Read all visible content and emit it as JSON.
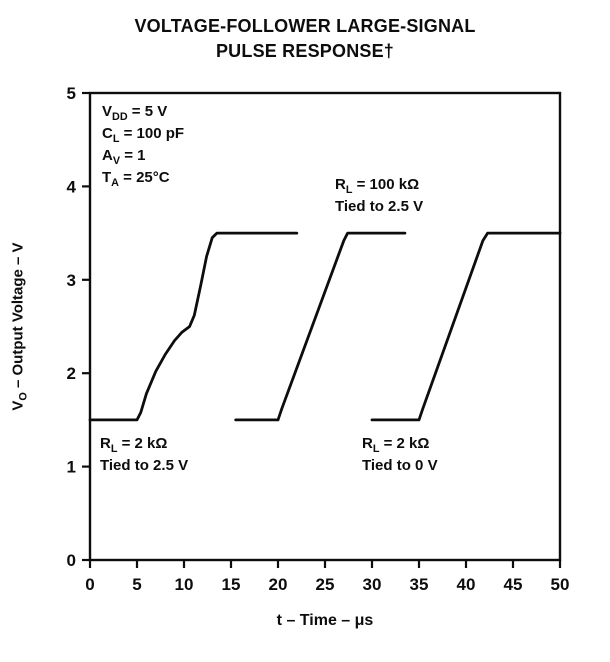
{
  "title": {
    "line1": "VOLTAGE-FOLLOWER LARGE-SIGNAL",
    "line2": "PULSE RESPONSE†"
  },
  "axes": {
    "x": {
      "label": "t – Time – μs"
    },
    "y": {
      "pre": "V",
      "sub": "O",
      "post": " – Output Voltage – V"
    }
  },
  "annotations": {
    "conditions": {
      "lines": [
        {
          "pre": "V",
          "sub": "DD",
          "post": " = 5 V"
        },
        {
          "pre": "C",
          "sub": "L",
          "post": " = 100 pF"
        },
        {
          "pre": "A",
          "sub": "V",
          "post": " = 1"
        },
        {
          "pre": "T",
          "sub": "A",
          "post": " = 25°C"
        }
      ]
    },
    "rl100k": {
      "pre": "R",
      "sub": "L",
      "post": " = 100 kΩ",
      "line2": "Tied to 2.5 V"
    },
    "rl2k25": {
      "pre": "R",
      "sub": "L",
      "post": " = 2 kΩ",
      "line2": "Tied to 2.5 V"
    },
    "rl2k0": {
      "pre": "R",
      "sub": "L",
      "post": " = 2 kΩ",
      "line2": "Tied to 0 V"
    }
  },
  "chart_data": {
    "type": "line",
    "title": "VOLTAGE-FOLLOWER LARGE-SIGNAL PULSE RESPONSE†",
    "xlabel": "t – Time – μs",
    "ylabel": "VO – Output Voltage – V",
    "xlim": [
      0,
      50
    ],
    "ylim": [
      0,
      5
    ],
    "x_ticks": [
      0,
      5,
      10,
      15,
      20,
      25,
      30,
      35,
      40,
      45,
      50
    ],
    "y_ticks": [
      0,
      1,
      2,
      3,
      4,
      5
    ],
    "grid": false,
    "legend_position": "none",
    "series": [
      {
        "name": "RL = 2 kΩ Tied to 2.5 V",
        "points": [
          [
            0,
            1.5
          ],
          [
            5,
            1.5
          ],
          [
            5.4,
            1.58
          ],
          [
            6,
            1.78
          ],
          [
            7,
            2.02
          ],
          [
            8,
            2.2
          ],
          [
            9,
            2.35
          ],
          [
            9.8,
            2.44
          ],
          [
            10.6,
            2.5
          ],
          [
            11.1,
            2.62
          ],
          [
            11.8,
            2.95
          ],
          [
            12.4,
            3.25
          ],
          [
            13,
            3.45
          ],
          [
            13.5,
            3.5
          ],
          [
            22,
            3.5
          ]
        ]
      },
      {
        "name": "RL = 100 kΩ Tied to 2.5 V",
        "points": [
          [
            15.5,
            1.5
          ],
          [
            20,
            1.5
          ],
          [
            20.4,
            1.62
          ],
          [
            27,
            3.42
          ],
          [
            27.4,
            3.5
          ],
          [
            33.5,
            3.5
          ]
        ]
      },
      {
        "name": "RL = 2 kΩ Tied to 0 V",
        "points": [
          [
            30,
            1.5
          ],
          [
            35,
            1.5
          ],
          [
            35.4,
            1.62
          ],
          [
            41.8,
            3.42
          ],
          [
            42.3,
            3.5
          ],
          [
            50,
            3.5
          ]
        ]
      }
    ]
  }
}
